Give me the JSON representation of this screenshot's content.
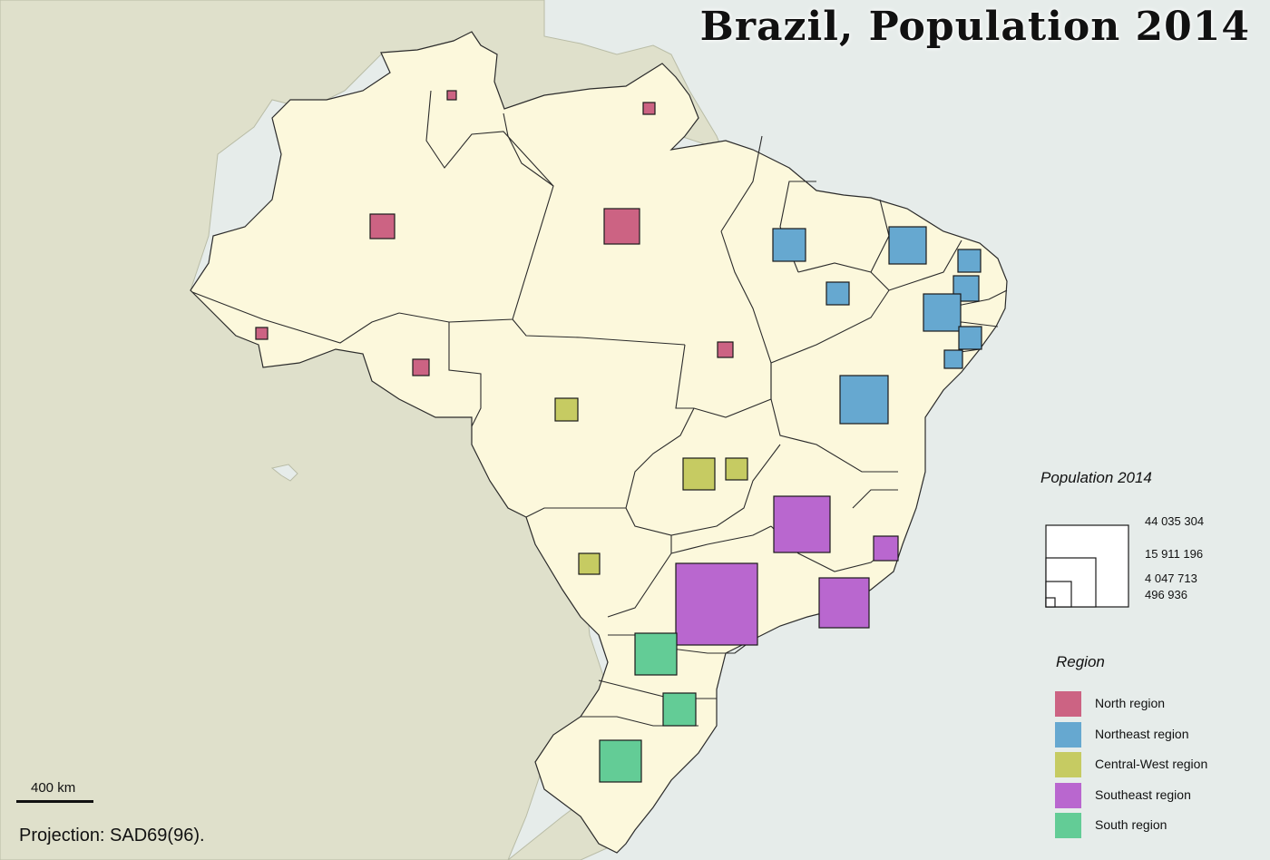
{
  "title": "Brazil, Population 2014",
  "colors": {
    "ocean": "#e6ecea",
    "neighbors": "#dfe0cb",
    "brazil": "#fcf8dc",
    "border": "#2b2b2b",
    "north": "#cc6383",
    "northeast": "#66a8d0",
    "central_west": "#c6cb62",
    "southeast": "#b967cf",
    "south": "#63cc96"
  },
  "size_legend": {
    "title": "Population 2014",
    "values": [
      "44 035 304",
      "15 911 196",
      "4 047 713",
      "496 936"
    ]
  },
  "region_legend": {
    "title": "Region",
    "items": [
      {
        "label": "North region",
        "color": "#cc6383",
        "icon": "square-swatch"
      },
      {
        "label": "Northeast region",
        "color": "#66a8d0",
        "icon": "square-swatch"
      },
      {
        "label": "Central-West region",
        "color": "#c6cb62",
        "icon": "square-swatch"
      },
      {
        "label": "Southeast region",
        "color": "#b967cf",
        "icon": "square-swatch"
      },
      {
        "label": "South region",
        "color": "#63cc96",
        "icon": "square-swatch"
      }
    ]
  },
  "scale": {
    "label": "400 km"
  },
  "projection": "Projection: SAD69(96)."
}
